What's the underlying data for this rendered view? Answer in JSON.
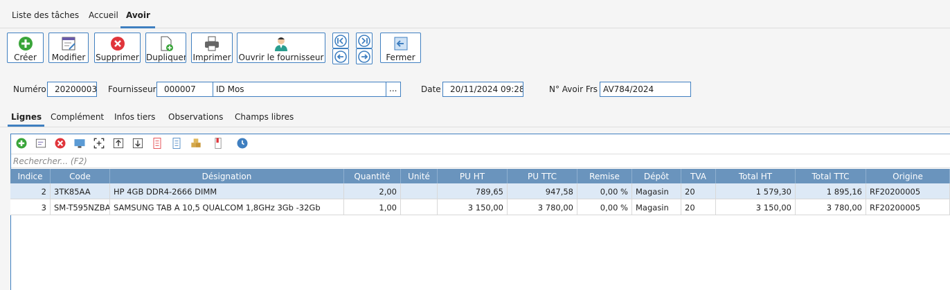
{
  "top_tabs": [
    "Liste des tâches",
    "Accueil",
    "Avoir"
  ],
  "toolbar": {
    "buttons": [
      "Créer",
      "Modifier",
      "Supprimer",
      "Dupliquer",
      "Imprimer",
      "Ouvrir le fournisseur",
      "Fermer"
    ]
  },
  "form": {
    "numero": {
      "label": "Numéro",
      "value": "20200003"
    },
    "fournisseur": {
      "label": "Fournisseur",
      "code": "000007",
      "name": "ID Mos",
      "button": "..."
    },
    "date": {
      "label": "Date",
      "value": "20/11/2024 09:28"
    },
    "avoir_frs": {
      "label": "N° Avoir Frs",
      "value": "AV784/2024"
    }
  },
  "sub_tabs": [
    "Lignes",
    "Complément",
    "Infos tiers",
    "Observations",
    "Champs libres"
  ],
  "grid": {
    "search_placeholder": "Rechercher... (F2)",
    "columns": [
      "Indice",
      "Code",
      "Désignation",
      "Quantité",
      "Unité",
      "PU HT",
      "PU TTC",
      "Remise",
      "Dépôt",
      "TVA",
      "Total HT",
      "Total TTC",
      "Origine"
    ],
    "rows": [
      [
        "2",
        "3TK85AA",
        "HP 4GB DDR4-2666 DIMM",
        "2,00",
        "",
        "789,65",
        "947,58",
        "0,00 %",
        "Magasin",
        "20",
        "1 579,30",
        "1 895,16",
        "RF20200005"
      ],
      [
        "3",
        "SM-T595NZBA",
        "SAMSUNG TAB A 10,5 QUALCOM 1,8GHz 3Gb -32Gb",
        "1,00",
        "",
        "3 150,00",
        "3 780,00",
        "0,00 %",
        "Magasin",
        "20",
        "3 150,00",
        "3 780,00",
        "RF20200005"
      ]
    ]
  }
}
